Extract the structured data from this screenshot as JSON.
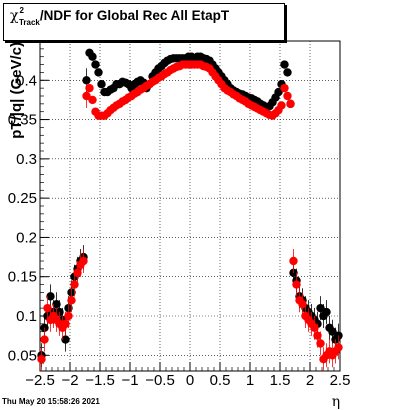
{
  "title": {
    "chi": "χ",
    "sup": "2",
    "sub": "Track",
    "rest": "/NDF for Global Rec All EtapT"
  },
  "footer": "Thu May 20 15:58:26 2021",
  "chart_data": {
    "type": "scatter",
    "title": "χ2Track/NDF for Global Rec All EtapT",
    "xlabel": "η",
    "ylabel": "pT/|q| (GeV/c)",
    "xlim": [
      -2.5,
      2.5
    ],
    "ylim": [
      0.03,
      0.45
    ],
    "grid": true,
    "x_ticks": [
      -2.5,
      -2,
      -1.5,
      -1,
      -0.5,
      0,
      0.5,
      1,
      1.5,
      2,
      2.5
    ],
    "x_tick_labels": [
      "−2.5",
      "−2",
      "−1.5",
      "−1",
      "−0.5",
      "0",
      "0.5",
      "1",
      "1.5",
      "2",
      "2.5"
    ],
    "y_ticks": [
      0.05,
      0.1,
      0.15,
      0.2,
      0.25,
      0.3,
      0.35,
      0.4
    ],
    "y_tick_labels": [
      "0.05",
      "0.1",
      "0.15",
      "0.2",
      "0.25",
      "0.3",
      "0.35",
      "0.4"
    ],
    "series": [
      {
        "color": "#000000",
        "points": [
          [
            -2.475,
            0.05
          ],
          [
            -2.425,
            0.085
          ],
          [
            -2.375,
            0.1
          ],
          [
            -2.325,
            0.125
          ],
          [
            -2.275,
            0.105
          ],
          [
            -2.225,
            0.115
          ],
          [
            -2.175,
            0.105
          ],
          [
            -2.125,
            0.095
          ],
          [
            -2.075,
            0.07
          ],
          [
            -2.025,
            0.11
          ],
          [
            -1.975,
            0.13
          ],
          [
            -1.925,
            0.15
          ],
          [
            -1.875,
            0.16
          ],
          [
            -1.825,
            0.17
          ],
          [
            -1.775,
            0.175
          ],
          [
            -1.725,
            0.4
          ],
          [
            -1.675,
            0.435
          ],
          [
            -1.625,
            0.43
          ],
          [
            -1.575,
            0.42
          ],
          [
            -1.525,
            0.41
          ],
          [
            -1.475,
            0.395
          ],
          [
            -1.425,
            0.385
          ],
          [
            -1.375,
            0.385
          ],
          [
            -1.325,
            0.388
          ],
          [
            -1.275,
            0.39
          ],
          [
            -1.225,
            0.395
          ],
          [
            -1.175,
            0.395
          ],
          [
            -1.125,
            0.398
          ],
          [
            -1.075,
            0.397
          ],
          [
            -1.025,
            0.395
          ],
          [
            -0.975,
            0.39
          ],
          [
            -0.925,
            0.395
          ],
          [
            -0.875,
            0.398
          ],
          [
            -0.825,
            0.4
          ],
          [
            -0.775,
            0.397
          ],
          [
            -0.725,
            0.39
          ],
          [
            -0.675,
            0.395
          ],
          [
            -0.625,
            0.405
          ],
          [
            -0.575,
            0.41
          ],
          [
            -0.525,
            0.415
          ],
          [
            -0.475,
            0.418
          ],
          [
            -0.425,
            0.422
          ],
          [
            -0.375,
            0.425
          ],
          [
            -0.325,
            0.427
          ],
          [
            -0.275,
            0.428
          ],
          [
            -0.225,
            0.428
          ],
          [
            -0.175,
            0.428
          ],
          [
            -0.125,
            0.428
          ],
          [
            -0.075,
            0.428
          ],
          [
            -0.025,
            0.43
          ],
          [
            0.025,
            0.43
          ],
          [
            0.075,
            0.428
          ],
          [
            0.125,
            0.43
          ],
          [
            0.175,
            0.43
          ],
          [
            0.225,
            0.428
          ],
          [
            0.275,
            0.427
          ],
          [
            0.325,
            0.425
          ],
          [
            0.375,
            0.42
          ],
          [
            0.425,
            0.415
          ],
          [
            0.475,
            0.41
          ],
          [
            0.525,
            0.405
          ],
          [
            0.575,
            0.4
          ],
          [
            0.625,
            0.395
          ],
          [
            0.675,
            0.39
          ],
          [
            0.725,
            0.387
          ],
          [
            0.775,
            0.385
          ],
          [
            0.825,
            0.383
          ],
          [
            0.875,
            0.382
          ],
          [
            0.925,
            0.38
          ],
          [
            0.975,
            0.378
          ],
          [
            1.025,
            0.377
          ],
          [
            1.075,
            0.375
          ],
          [
            1.125,
            0.373
          ],
          [
            1.175,
            0.37
          ],
          [
            1.225,
            0.368
          ],
          [
            1.275,
            0.365
          ],
          [
            1.325,
            0.367
          ],
          [
            1.375,
            0.372
          ],
          [
            1.425,
            0.378
          ],
          [
            1.475,
            0.385
          ],
          [
            1.525,
            0.395
          ],
          [
            1.575,
            0.42
          ],
          [
            1.625,
            0.41
          ],
          [
            1.675,
            0.37
          ],
          [
            1.725,
            0.155
          ],
          [
            1.775,
            0.145
          ],
          [
            1.825,
            0.125
          ],
          [
            1.875,
            0.12
          ],
          [
            1.925,
            0.11
          ],
          [
            1.975,
            0.105
          ],
          [
            2.025,
            0.1
          ],
          [
            2.075,
            0.095
          ],
          [
            2.125,
            0.09
          ],
          [
            2.175,
            0.11
          ],
          [
            2.225,
            0.1
          ],
          [
            2.275,
            0.105
          ],
          [
            2.325,
            0.085
          ],
          [
            2.375,
            0.08
          ],
          [
            2.425,
            0.07
          ],
          [
            2.475,
            0.075
          ]
        ]
      },
      {
        "color": "#ff0000",
        "points": [
          [
            -2.475,
            0.045
          ],
          [
            -2.425,
            0.07
          ],
          [
            -2.375,
            0.11
          ],
          [
            -2.325,
            0.095
          ],
          [
            -2.275,
            0.1
          ],
          [
            -2.225,
            0.095
          ],
          [
            -2.175,
            0.09
          ],
          [
            -2.125,
            0.085
          ],
          [
            -2.075,
            0.09
          ],
          [
            -2.025,
            0.1
          ],
          [
            -1.975,
            0.12
          ],
          [
            -1.925,
            0.14
          ],
          [
            -1.875,
            0.155
          ],
          [
            -1.825,
            0.165
          ],
          [
            -1.775,
            0.17
          ],
          [
            -1.725,
            0.38
          ],
          [
            -1.675,
            0.39
          ],
          [
            -1.625,
            0.375
          ],
          [
            -1.575,
            0.36
          ],
          [
            -1.525,
            0.355
          ],
          [
            -1.475,
            0.355
          ],
          [
            -1.425,
            0.355
          ],
          [
            -1.375,
            0.358
          ],
          [
            -1.325,
            0.362
          ],
          [
            -1.275,
            0.365
          ],
          [
            -1.225,
            0.368
          ],
          [
            -1.175,
            0.37
          ],
          [
            -1.125,
            0.373
          ],
          [
            -1.075,
            0.375
          ],
          [
            -1.025,
            0.378
          ],
          [
            -0.975,
            0.38
          ],
          [
            -0.925,
            0.383
          ],
          [
            -0.875,
            0.385
          ],
          [
            -0.825,
            0.388
          ],
          [
            -0.775,
            0.39
          ],
          [
            -0.725,
            0.393
          ],
          [
            -0.675,
            0.395
          ],
          [
            -0.625,
            0.398
          ],
          [
            -0.575,
            0.4
          ],
          [
            -0.525,
            0.403
          ],
          [
            -0.475,
            0.405
          ],
          [
            -0.425,
            0.408
          ],
          [
            -0.375,
            0.41
          ],
          [
            -0.325,
            0.413
          ],
          [
            -0.275,
            0.415
          ],
          [
            -0.225,
            0.417
          ],
          [
            -0.175,
            0.418
          ],
          [
            -0.125,
            0.42
          ],
          [
            -0.075,
            0.42
          ],
          [
            -0.025,
            0.42
          ],
          [
            0.025,
            0.42
          ],
          [
            0.075,
            0.42
          ],
          [
            0.125,
            0.42
          ],
          [
            0.175,
            0.42
          ],
          [
            0.225,
            0.418
          ],
          [
            0.275,
            0.417
          ],
          [
            0.325,
            0.415
          ],
          [
            0.375,
            0.41
          ],
          [
            0.425,
            0.405
          ],
          [
            0.475,
            0.4
          ],
          [
            0.525,
            0.395
          ],
          [
            0.575,
            0.39
          ],
          [
            0.625,
            0.387
          ],
          [
            0.675,
            0.385
          ],
          [
            0.725,
            0.382
          ],
          [
            0.775,
            0.38
          ],
          [
            0.825,
            0.377
          ],
          [
            0.875,
            0.375
          ],
          [
            0.925,
            0.373
          ],
          [
            0.975,
            0.37
          ],
          [
            1.025,
            0.368
          ],
          [
            1.075,
            0.366
          ],
          [
            1.125,
            0.364
          ],
          [
            1.175,
            0.362
          ],
          [
            1.225,
            0.36
          ],
          [
            1.275,
            0.358
          ],
          [
            1.325,
            0.356
          ],
          [
            1.375,
            0.355
          ],
          [
            1.425,
            0.358
          ],
          [
            1.475,
            0.362
          ],
          [
            1.525,
            0.368
          ],
          [
            1.575,
            0.39
          ],
          [
            1.625,
            0.38
          ],
          [
            1.675,
            0.37
          ],
          [
            1.725,
            0.17
          ],
          [
            1.775,
            0.14
          ],
          [
            1.825,
            0.12
          ],
          [
            1.875,
            0.115
          ],
          [
            1.925,
            0.1
          ],
          [
            1.975,
            0.095
          ],
          [
            2.025,
            0.09
          ],
          [
            2.075,
            0.085
          ],
          [
            2.125,
            0.075
          ],
          [
            2.175,
            0.065
          ],
          [
            2.225,
            0.045
          ],
          [
            2.275,
            0.05
          ],
          [
            2.325,
            0.055
          ],
          [
            2.375,
            0.05
          ],
          [
            2.425,
            0.055
          ],
          [
            2.475,
            0.06
          ]
        ]
      }
    ]
  }
}
